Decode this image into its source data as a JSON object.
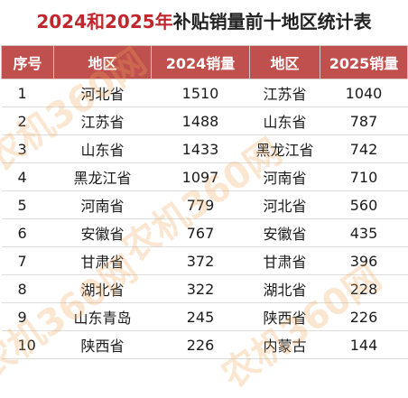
{
  "title": {
    "part1": "2024和2025年",
    "part2": "补贴销量前十地区统计表"
  },
  "header": {
    "rank": "序号",
    "region2024": "地区",
    "sales2024": "2024销量",
    "region2025": "地区",
    "sales2025": "2025销量"
  },
  "rows": [
    {
      "rank": "1",
      "region2024": "河北省",
      "sales2024": "1510",
      "region2025": "江苏省",
      "sales2025": "1040"
    },
    {
      "rank": "2",
      "region2024": "江苏省",
      "sales2024": "1488",
      "region2025": "山东省",
      "sales2025": "787"
    },
    {
      "rank": "3",
      "region2024": "山东省",
      "sales2024": "1433",
      "region2025": "黑龙江省",
      "sales2025": "742"
    },
    {
      "rank": "4",
      "region2024": "黑龙江省",
      "sales2024": "1097",
      "region2025": "河南省",
      "sales2025": "710"
    },
    {
      "rank": "5",
      "region2024": "河南省",
      "sales2024": "779",
      "region2025": "河北省",
      "sales2025": "560"
    },
    {
      "rank": "6",
      "region2024": "安徽省",
      "sales2024": "767",
      "region2025": "安徽省",
      "sales2025": "435"
    },
    {
      "rank": "7",
      "region2024": "甘肃省",
      "sales2024": "372",
      "region2025": "甘肃省",
      "sales2025": "396"
    },
    {
      "rank": "8",
      "region2024": "湖北省",
      "sales2024": "322",
      "region2025": "湖北省",
      "sales2025": "228"
    },
    {
      "rank": "9",
      "region2024": "山东青岛",
      "sales2024": "245",
      "region2025": "陕西省",
      "sales2025": "226"
    },
    {
      "rank": "10",
      "region2024": "陕西省",
      "sales2024": "226",
      "region2025": "内蒙古",
      "sales2025": "144"
    }
  ],
  "watermark": "农机360网",
  "colors": {
    "title_accent": "#c0272d",
    "header_bg": "#c0504d",
    "watermark": "#f2aa5a"
  }
}
